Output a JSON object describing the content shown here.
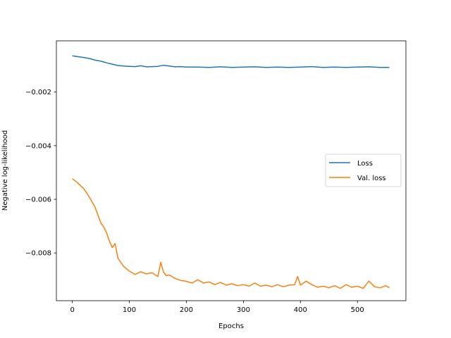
{
  "chart_data": {
    "type": "line",
    "title": "",
    "xlabel": "Epochs",
    "ylabel": "Negative log-likelihood",
    "xlim": [
      -28,
      585
    ],
    "ylim": [
      -0.00978,
      -9e-05
    ],
    "xticks": [
      0,
      100,
      200,
      300,
      400,
      500
    ],
    "yticks": [
      -0.002,
      -0.004,
      -0.006,
      -0.008
    ],
    "xtick_labels": [
      "0",
      "100",
      "200",
      "300",
      "400",
      "500"
    ],
    "ytick_labels": [
      "−0.002",
      "−0.004",
      "−0.006",
      "−0.008"
    ],
    "grid": false,
    "legend_position": "center-right",
    "series": [
      {
        "name": "Loss",
        "color": "#1f77b4",
        "x": [
          0,
          10,
          20,
          30,
          40,
          50,
          60,
          70,
          80,
          90,
          100,
          110,
          120,
          130,
          140,
          150,
          160,
          170,
          180,
          190,
          200,
          220,
          240,
          260,
          280,
          300,
          320,
          340,
          360,
          380,
          400,
          420,
          440,
          460,
          480,
          500,
          520,
          540,
          556
        ],
        "y": [
          -0.00065,
          -0.00068,
          -0.00071,
          -0.00075,
          -0.00081,
          -0.00085,
          -0.00091,
          -0.00096,
          -0.00101,
          -0.00103,
          -0.00104,
          -0.00105,
          -0.00102,
          -0.00106,
          -0.00105,
          -0.00104,
          -0.001,
          -0.00103,
          -0.00106,
          -0.00105,
          -0.00107,
          -0.00107,
          -0.00108,
          -0.00106,
          -0.00108,
          -0.00107,
          -0.00106,
          -0.00108,
          -0.00107,
          -0.00108,
          -0.00107,
          -0.00105,
          -0.00108,
          -0.00107,
          -0.00108,
          -0.00107,
          -0.00106,
          -0.00108,
          -0.00108
        ]
      },
      {
        "name": "Val. loss",
        "color": "#ff7f0e",
        "x": [
          0,
          10,
          20,
          30,
          40,
          45,
          50,
          55,
          60,
          65,
          70,
          75,
          80,
          85,
          90,
          100,
          110,
          120,
          130,
          140,
          150,
          155,
          160,
          165,
          170,
          180,
          190,
          200,
          210,
          220,
          230,
          240,
          250,
          260,
          270,
          280,
          290,
          300,
          310,
          320,
          330,
          340,
          350,
          360,
          370,
          380,
          390,
          395,
          400,
          410,
          420,
          430,
          440,
          450,
          460,
          470,
          480,
          490,
          500,
          510,
          520,
          530,
          540,
          550,
          556
        ],
        "y": [
          -0.00523,
          -0.0054,
          -0.0056,
          -0.00592,
          -0.0063,
          -0.0066,
          -0.00688,
          -0.00703,
          -0.00725,
          -0.00755,
          -0.0078,
          -0.00765,
          -0.0082,
          -0.00835,
          -0.0085,
          -0.00868,
          -0.0088,
          -0.0087,
          -0.00878,
          -0.00874,
          -0.00888,
          -0.00835,
          -0.00872,
          -0.00885,
          -0.00882,
          -0.00895,
          -0.00902,
          -0.00906,
          -0.00912,
          -0.009,
          -0.00912,
          -0.00908,
          -0.00918,
          -0.0091,
          -0.0092,
          -0.00915,
          -0.00922,
          -0.00918,
          -0.00924,
          -0.00912,
          -0.00924,
          -0.0092,
          -0.00926,
          -0.00918,
          -0.00926,
          -0.0092,
          -0.00918,
          -0.00888,
          -0.0092,
          -0.00905,
          -0.00918,
          -0.00928,
          -0.00924,
          -0.0093,
          -0.00922,
          -0.00932,
          -0.00918,
          -0.00928,
          -0.00924,
          -0.00932,
          -0.00905,
          -0.00926,
          -0.0093,
          -0.00922,
          -0.0093
        ]
      }
    ]
  }
}
